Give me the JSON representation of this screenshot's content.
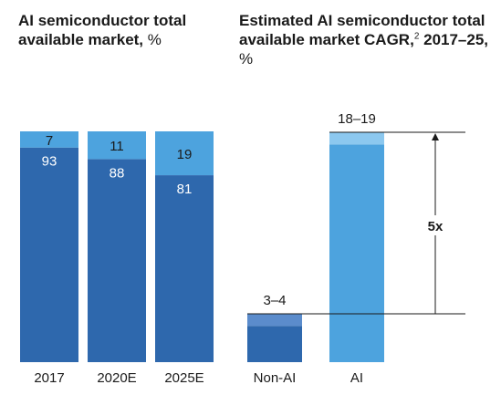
{
  "chart_data": [
    {
      "type": "bar",
      "stacked": true,
      "title": "AI semiconductor total available market,",
      "title_unit": "%",
      "categories": [
        "2017",
        "2020E",
        "2025E"
      ],
      "series": [
        {
          "values": [
            93,
            88,
            81
          ],
          "color": "#2e68ad"
        },
        {
          "values": [
            7,
            11,
            19
          ],
          "color": "#4da3de"
        }
      ],
      "ylim": [
        0,
        100
      ]
    },
    {
      "type": "bar",
      "title": "Estimated AI semiconductor total available market CAGR,",
      "title_sup": "2",
      "title_years": "2017–25,",
      "title_unit": "%",
      "categories": [
        "Non-AI",
        "AI"
      ],
      "values": [
        {
          "low": 3,
          "high": 4,
          "label": "3–4"
        },
        {
          "low": 18,
          "high": 19,
          "label": "18–19"
        }
      ],
      "colors": {
        "nonai": "#2e68ad",
        "nonai_range": "#5b8ccc",
        "ai": "#4da3de",
        "ai_range": "#8cc8ef"
      },
      "ylim": [
        0,
        19
      ],
      "annotation": "5x"
    }
  ]
}
